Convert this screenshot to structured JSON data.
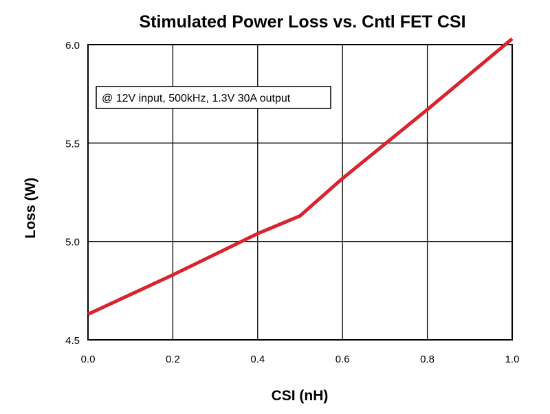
{
  "chart_data": {
    "type": "line",
    "title": "Stimulated Power Loss vs. Cntl FET CSI",
    "xlabel": "CSI (nH)",
    "ylabel": "Loss (W)",
    "xlim": [
      0.0,
      1.0
    ],
    "ylim": [
      4.5,
      6.0
    ],
    "x_ticks": [
      "0.0",
      "0.2",
      "0.4",
      "0.6",
      "0.8",
      "1.0"
    ],
    "x_tick_values": [
      0.0,
      0.2,
      0.4,
      0.6,
      0.8,
      1.0
    ],
    "y_ticks": [
      "4.5",
      "5.0",
      "5.5",
      "6.0"
    ],
    "y_tick_values": [
      4.5,
      5.0,
      5.5,
      6.0
    ],
    "grid": true,
    "annotation": "@ 12V input, 500kHz, 1.3V 30A output",
    "series": [
      {
        "color": "#d9232e",
        "x": [
          0.0,
          0.2,
          0.4,
          0.5,
          0.6,
          0.8,
          1.0
        ],
        "y": [
          4.63,
          4.83,
          5.04,
          5.13,
          5.32,
          5.67,
          6.03
        ]
      }
    ]
  }
}
